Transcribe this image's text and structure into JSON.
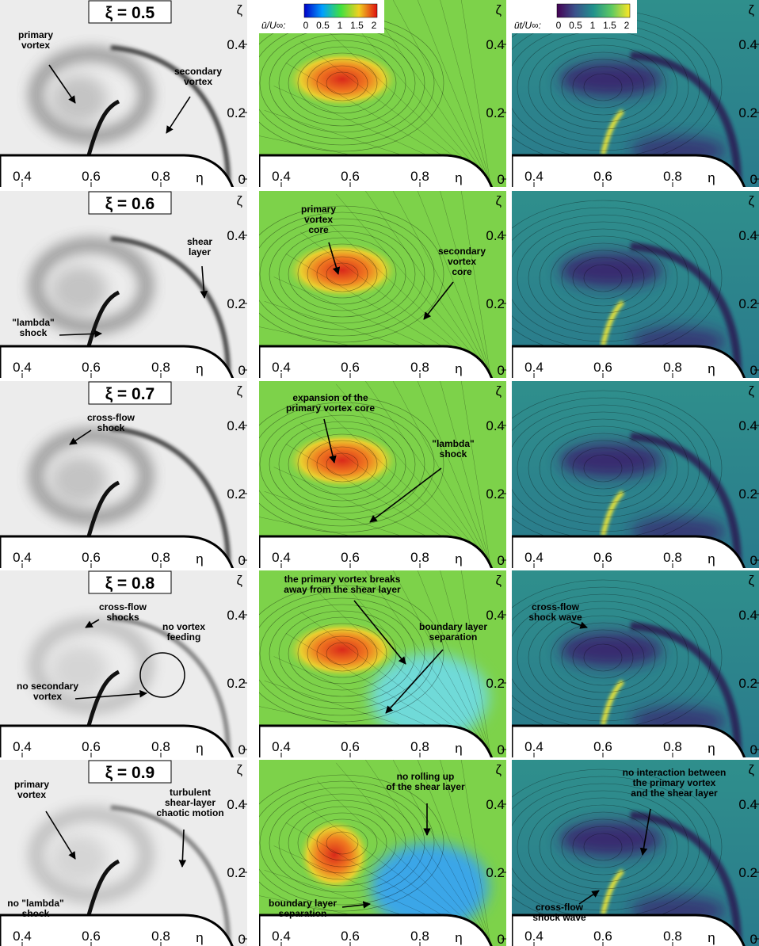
{
  "figure": {
    "axes": {
      "x_ticks": [
        "0.4",
        "0.6",
        "0.8"
      ],
      "x_label": "η",
      "y_ticks": [
        "0.4",
        "0.2",
        "0"
      ],
      "y_label": "ζ"
    },
    "colorbars": [
      {
        "label": "ū/U∞:",
        "ticks": [
          "0",
          "0.5",
          "1",
          "1.5",
          "2"
        ]
      },
      {
        "label": "ūt/U∞:",
        "ticks": [
          "0",
          "0.5",
          "1",
          "1.5",
          "2"
        ]
      }
    ],
    "rows": [
      {
        "xi": "ξ = 0.5",
        "panels": [
          {
            "annotations": [
              {
                "lines": [
                  "primary",
                  "vortex"
                ]
              },
              {
                "lines": [
                  "secondary",
                  "vortex"
                ]
              }
            ]
          },
          {
            "annotations": []
          },
          {
            "annotations": []
          }
        ]
      },
      {
        "xi": "ξ = 0.6",
        "panels": [
          {
            "annotations": [
              {
                "lines": [
                  "shear",
                  "layer"
                ]
              },
              {
                "lines": [
                  "\"lambda\"",
                  "shock"
                ]
              }
            ]
          },
          {
            "annotations": [
              {
                "lines": [
                  "primary",
                  "vortex",
                  "core"
                ]
              },
              {
                "lines": [
                  "secondary",
                  "vortex",
                  "core"
                ]
              }
            ]
          },
          {
            "annotations": []
          }
        ]
      },
      {
        "xi": "ξ = 0.7",
        "panels": [
          {
            "annotations": [
              {
                "lines": [
                  "cross-flow",
                  "shock"
                ]
              }
            ]
          },
          {
            "annotations": [
              {
                "lines": [
                  "expansion of the",
                  "primary vortex core"
                ]
              },
              {
                "lines": [
                  "\"lambda\"",
                  "shock"
                ]
              }
            ]
          },
          {
            "annotations": []
          }
        ]
      },
      {
        "xi": "ξ = 0.8",
        "panels": [
          {
            "annotations": [
              {
                "lines": [
                  "cross-flow",
                  "shocks"
                ]
              },
              {
                "lines": [
                  "no vortex",
                  "feeding"
                ]
              },
              {
                "lines": [
                  "no secondary",
                  "vortex"
                ]
              }
            ]
          },
          {
            "annotations": [
              {
                "lines": [
                  "the primary vortex breaks",
                  "away from the shear layer"
                ]
              },
              {
                "lines": [
                  "boundary layer",
                  "separation"
                ]
              }
            ]
          },
          {
            "annotations": [
              {
                "lines": [
                  "cross-flow",
                  "shock wave"
                ]
              }
            ]
          }
        ]
      },
      {
        "xi": "ξ = 0.9",
        "panels": [
          {
            "annotations": [
              {
                "lines": [
                  "primary",
                  "vortex"
                ]
              },
              {
                "lines": [
                  "turbulent",
                  "shear-layer",
                  "chaotic motion"
                ]
              },
              {
                "lines": [
                  "no \"lambda\"",
                  "shock"
                ]
              }
            ]
          },
          {
            "annotations": [
              {
                "lines": [
                  "no rolling up",
                  "of the shear layer"
                ]
              },
              {
                "lines": [
                  "boundary layer",
                  "separation"
                ]
              }
            ]
          },
          {
            "annotations": [
              {
                "lines": [
                  "no interaction between",
                  "the primary vortex",
                  "and the shear layer"
                ]
              },
              {
                "lines": [
                  "cross-flow",
                  "shock wave"
                ]
              }
            ]
          }
        ]
      }
    ]
  }
}
